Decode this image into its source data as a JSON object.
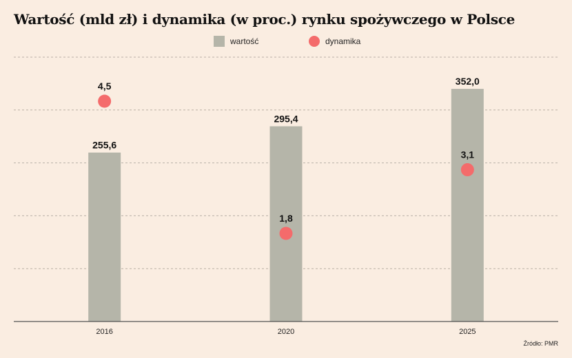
{
  "chart_data": {
    "type": "bar",
    "title": "Wartość (mld zł) i dynamika (w proc.) rynku spożywczego w Polsce",
    "categories": [
      "2016",
      "2020",
      "2025"
    ],
    "series": [
      {
        "name": "wartość",
        "kind": "bar",
        "values": [
          255.6,
          295.4,
          352.0
        ],
        "labels": [
          "255,6",
          "295,4",
          "352,0"
        ],
        "color": "#b5b5a9"
      },
      {
        "name": "dynamika",
        "kind": "scatter",
        "values": [
          4.5,
          1.8,
          3.1
        ],
        "labels": [
          "4,5",
          "1,8",
          "3,1"
        ],
        "color": "#f46b6b"
      }
    ],
    "ylim_bars": [
      0,
      400
    ],
    "ylim_dynamics": [
      0,
      5.4
    ],
    "grid": true,
    "legend_position": "top-center",
    "source": "Źródło: PMR"
  }
}
